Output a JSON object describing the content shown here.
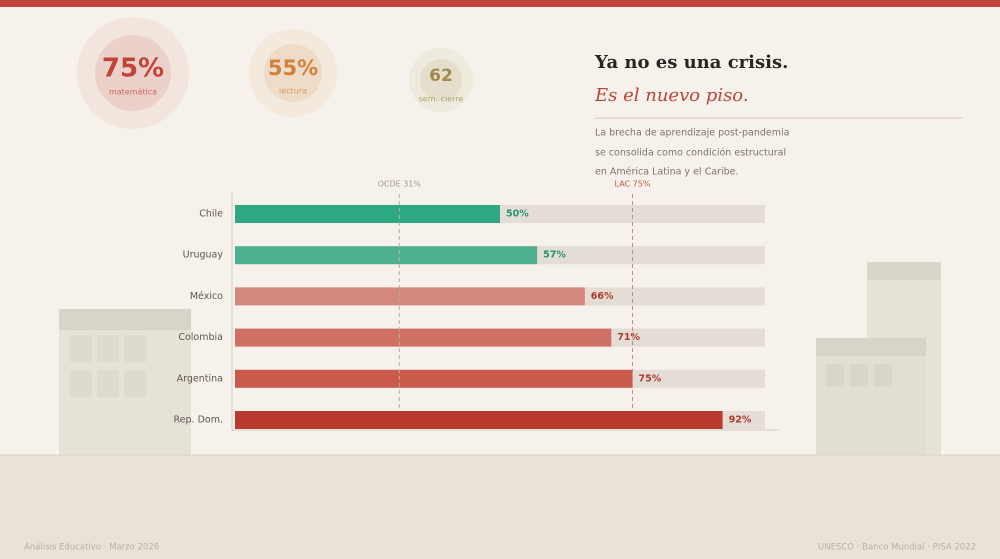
{
  "stats": [
    {
      "value": "75%",
      "label": "matemática",
      "color": "#c0443a"
    },
    {
      "value": "55%",
      "label": "lectura",
      "color": "#d0823a"
    },
    {
      "value": "62",
      "label": "sem. cierre",
      "color": "#a08a4a"
    }
  ],
  "header": {
    "title": "Ya no es una crisis.",
    "subtitle": "Es el nuevo piso.",
    "description": [
      "La brecha de aprendizaje post-pandemia",
      "se consolida como condición estructural",
      "en América Latina y el Caribe."
    ]
  },
  "chart_data": {
    "type": "bar",
    "orientation": "horizontal",
    "categories": [
      "Chile",
      "Uruguay",
      "México",
      "Colombia",
      "Argentina",
      "Rep. Dom."
    ],
    "values": [
      50,
      57,
      66,
      71,
      75,
      92
    ],
    "value_labels": [
      "50%",
      "57%",
      "66%",
      "71%",
      "75%",
      "92%"
    ],
    "colors": [
      "#2ea882",
      "#4cb08f",
      "#d4877c",
      "#cf7064",
      "#c95a4c",
      "#b83b2e"
    ],
    "label_colors": [
      "#24946f",
      "#24946f",
      "#b03a2e",
      "#b03a2e",
      "#b03a2e",
      "#b03a2e"
    ],
    "xlim": [
      0,
      100
    ],
    "reference_lines": [
      {
        "value": 31,
        "label": "OCDE 31%"
      },
      {
        "value": 75,
        "label": "LAC 75%"
      }
    ]
  },
  "footer": {
    "left": "Análisis Educativo  ·  Marzo 2026",
    "right": "UNESCO  ·  Banco Mundial  ·  PISA 2022"
  }
}
